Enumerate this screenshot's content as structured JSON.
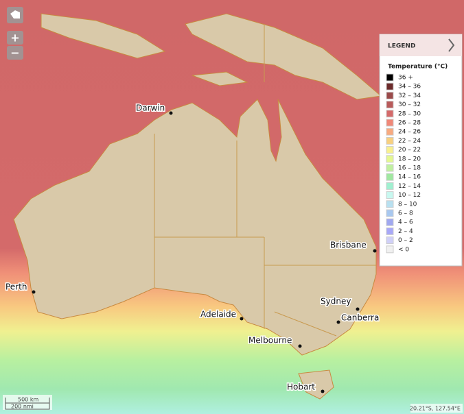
{
  "controls": {
    "zoom_in": "+",
    "zoom_out": "−"
  },
  "legend": {
    "title": "LEGEND",
    "subtitle": "Temperature (°C)",
    "items": [
      {
        "label": "36 +",
        "color": "#000000"
      },
      {
        "label": "34 – 36",
        "color": "#6b2b2b"
      },
      {
        "label": "32 – 34",
        "color": "#9a4a4a"
      },
      {
        "label": "30 – 32",
        "color": "#b85a5a"
      },
      {
        "label": "28 – 30",
        "color": "#d46a6a"
      },
      {
        "label": "26 – 28",
        "color": "#f08878"
      },
      {
        "label": "24 – 26",
        "color": "#f8aa80"
      },
      {
        "label": "22 – 24",
        "color": "#f8d080"
      },
      {
        "label": "20 – 22",
        "color": "#f8f090"
      },
      {
        "label": "18 – 20",
        "color": "#e4f890"
      },
      {
        "label": "16 – 18",
        "color": "#c0f0a0"
      },
      {
        "label": "14 – 16",
        "color": "#a0e8a0"
      },
      {
        "label": "12 – 14",
        "color": "#a0f0d0"
      },
      {
        "label": "10 – 12",
        "color": "#c8f8f0"
      },
      {
        "label": "8 – 10",
        "color": "#b8e0f0"
      },
      {
        "label": "6 – 8",
        "color": "#a8c8f0"
      },
      {
        "label": "4 – 6",
        "color": "#a0a8f0"
      },
      {
        "label": "2 – 4",
        "color": "#a8a8f8"
      },
      {
        "label": "0 – 2",
        "color": "#d0d0f8"
      },
      {
        "label": "< 0",
        "color": "#f0f0f0"
      }
    ]
  },
  "cities": {
    "darwin": "Darwin",
    "perth": "Perth",
    "adelaide": "Adelaide",
    "melbourne": "Melbourne",
    "hobart": "Hobart",
    "sydney": "Sydney",
    "canberra": "Canberra",
    "brisbane": "Brisbane"
  },
  "scale": {
    "km": "500 km",
    "nmi": "200 nmi"
  },
  "coordinates": "20.21°S, 127.54°E"
}
